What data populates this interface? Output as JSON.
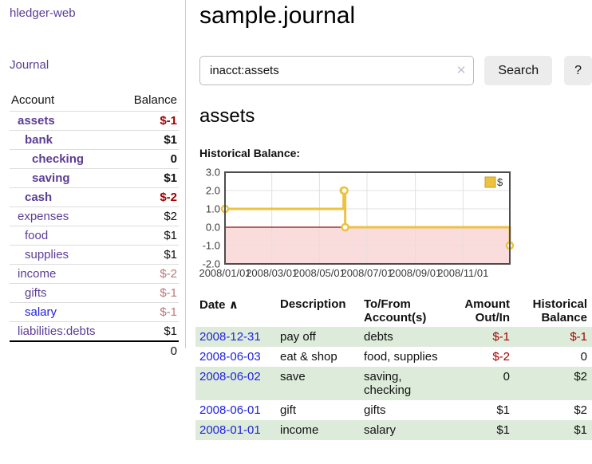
{
  "app": {
    "title": "hledger-web"
  },
  "nav": {
    "journal_label": "Journal"
  },
  "sidebar": {
    "header": {
      "account": "Account",
      "balance": "Balance"
    },
    "accounts": [
      {
        "name": "assets",
        "depth": 0,
        "active": true,
        "balance": "$-1"
      },
      {
        "name": "bank",
        "depth": 1,
        "active": true,
        "balance": "$1"
      },
      {
        "name": "checking",
        "depth": 2,
        "active": true,
        "balance": "0"
      },
      {
        "name": "saving",
        "depth": 2,
        "active": true,
        "balance": "$1"
      },
      {
        "name": "cash",
        "depth": 1,
        "active": true,
        "balance": "$-2"
      },
      {
        "name": "expenses",
        "depth": 0,
        "active": false,
        "balance": "$2"
      },
      {
        "name": "food",
        "depth": 1,
        "active": false,
        "balance": "$1"
      },
      {
        "name": "supplies",
        "depth": 1,
        "active": false,
        "balance": "$1"
      },
      {
        "name": "income",
        "depth": 0,
        "active": false,
        "balance": "$-2"
      },
      {
        "name": "gifts",
        "depth": 1,
        "active": false,
        "balance": "$-1"
      },
      {
        "name": "salary",
        "depth": 1,
        "active": false,
        "balance": "$-1",
        "unvisited": true
      },
      {
        "name": "liabilities:debts",
        "depth": 0,
        "active": false,
        "balance": "$1"
      }
    ],
    "total": "0"
  },
  "main": {
    "title": "sample.journal",
    "search": {
      "value": "inacct:assets",
      "clear_icon": "✕",
      "button_label": "Search",
      "help_label": "?"
    },
    "account_heading": "assets",
    "chart_label": "Historical Balance:"
  },
  "chart_data": {
    "type": "line",
    "style": "step",
    "title": "Historical Balance",
    "series": [
      {
        "name": "$",
        "color": "#EDC240",
        "points": [
          [
            "2008-01-01",
            1
          ],
          [
            "2008-06-01",
            2
          ],
          [
            "2008-06-02",
            2
          ],
          [
            "2008-06-03",
            0
          ],
          [
            "2008-12-31",
            -1
          ]
        ]
      }
    ],
    "xlim": [
      "2008-01-01",
      "2008-12-31"
    ],
    "ylim": [
      -2,
      3
    ],
    "yticks": [
      3.0,
      2.0,
      1.0,
      0.0,
      -1.0,
      -2.0
    ],
    "xtick_labels": [
      "2008/01/01",
      "2008/03/01",
      "2008/05/01",
      "2008/07/01",
      "2008/09/01",
      "2008/11/01"
    ],
    "legend": {
      "label": "$",
      "position": "top-right"
    },
    "grid": true,
    "negative_region_color": "#fbdcdc",
    "zero_line_color": "#871111",
    "grid_color": "#e0e0e0",
    "border_color": "#4d4d4d",
    "marker_fill": "#ffffff"
  },
  "transactions": {
    "sort_icon": "∧",
    "columns": {
      "date": "Date",
      "description": "Description",
      "accounts": "To/From Account(s)",
      "amount": "Amount Out/In",
      "balance": "Historical Balance"
    },
    "rows": [
      {
        "date": "2008-12-31",
        "description": "pay off",
        "accounts": "debts",
        "amount": "$-1",
        "balance": "$-1"
      },
      {
        "date": "2008-06-03",
        "description": "eat & shop",
        "accounts": "food, supplies",
        "amount": "$-2",
        "balance": "0"
      },
      {
        "date": "2008-06-02",
        "description": "save",
        "accounts": "saving, checking",
        "amount": "0",
        "balance": "$2"
      },
      {
        "date": "2008-06-01",
        "description": "gift",
        "accounts": "gifts",
        "amount": "$1",
        "balance": "$2"
      },
      {
        "date": "2008-01-01",
        "description": "income",
        "accounts": "salary",
        "amount": "$1",
        "balance": "$1"
      }
    ]
  },
  "colors": {
    "link_purple": "#5b3d94",
    "link_blue": "#2222dd",
    "negative_strong": "#a40000",
    "negative_muted": "#bb7777",
    "row_green": "#ddecda",
    "button_gray": "#ececec"
  }
}
